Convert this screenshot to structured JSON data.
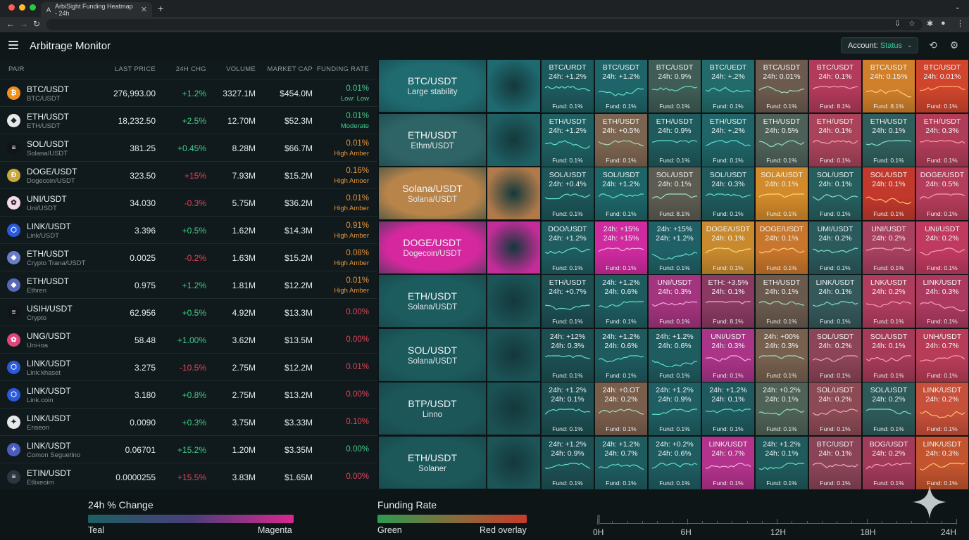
{
  "browser": {
    "tab_title": "ArbiSight Funding Heatmap - 24h",
    "tab_close": "✕",
    "new_tab": "+"
  },
  "app": {
    "title": "Arbitrage Monitor",
    "account_label": "Account:",
    "account_status": "Status"
  },
  "table": {
    "headers": [
      "PAIR",
      "LAST PRICE",
      "24H CHG",
      "VOLUME",
      "MARKET CAP",
      "FUNDING RATE"
    ],
    "rows": [
      {
        "pair": "BTC/USDT",
        "sub": "BTC/USDT",
        "icon": "₿",
        "icon_color": "#f0911a",
        "price": "276,993.00",
        "chg": "+1.2%",
        "chg_dir": "up",
        "volume": "3327.1M",
        "mcap": "$454.0M",
        "rate": "0.01%",
        "rate_label": "Low: Low",
        "rate_color": "#43c98a"
      },
      {
        "pair": "ETH/USDT",
        "sub": "ETH/USDT",
        "icon": "◆",
        "icon_color": "#e6e8ea",
        "price": "18,232.50",
        "chg": "+2.5%",
        "chg_dir": "up",
        "volume": "12.70M",
        "mcap": "$52.3M",
        "rate": "0.01%",
        "rate_label": "Moderate",
        "rate_color": "#43c98a"
      },
      {
        "pair": "SOL/USDT",
        "sub": "Solana/USDT",
        "icon": "≡",
        "icon_color": "#111418",
        "price": "381.25",
        "chg": "+0.45%",
        "chg_dir": "up",
        "volume": "8.28M",
        "mcap": "$66.7M",
        "rate": "0.01%",
        "rate_label": "High Amber",
        "rate_color": "#e5923a"
      },
      {
        "pair": "DOGE/USDT",
        "sub": "Dogecoin/USDT",
        "icon": "Ð",
        "icon_color": "#c9a83b",
        "price": "323.50",
        "chg": "+15%",
        "chg_dir": "down",
        "volume": "7.93M",
        "mcap": "$15.2M",
        "rate": "0.16%",
        "rate_label": "High Amoer",
        "rate_color": "#e5923a"
      },
      {
        "pair": "UNI/USDT",
        "sub": "Uni/USDT",
        "icon": "✿",
        "icon_color": "#f3dbe8",
        "price": "34.030",
        "chg": "-0.3%",
        "chg_dir": "down",
        "volume": "5.75M",
        "mcap": "$36.2M",
        "rate": "0.01%",
        "rate_label": "High Amber",
        "rate_color": "#e5923a"
      },
      {
        "pair": "LINK/USDT",
        "sub": "Link/USDT",
        "icon": "⬡",
        "icon_color": "#2a5ada",
        "price": "3.396",
        "chg": "+0.5%",
        "chg_dir": "up",
        "volume": "1.62M",
        "mcap": "$14.3M",
        "rate": "0.91%",
        "rate_label": "High Amber",
        "rate_color": "#e5923a"
      },
      {
        "pair": "ETH/USDT",
        "sub": "Crypto Trana/USDT",
        "icon": "◆",
        "icon_color": "#6a7ec8",
        "price": "0.0025",
        "chg": "-0.2%",
        "chg_dir": "down",
        "volume": "1.63M",
        "mcap": "$15.2M",
        "rate": "0.08%",
        "rate_label": "High Amber",
        "rate_color": "#e5923a"
      },
      {
        "pair": "ETH/USDT",
        "sub": "Ethren",
        "icon": "◆",
        "icon_color": "#5868b8",
        "price": "0.975",
        "chg": "+1.2%",
        "chg_dir": "up",
        "volume": "1.81M",
        "mcap": "$12.2M",
        "rate": "0.01%",
        "rate_label": "High Amber",
        "rate_color": "#e5923a"
      },
      {
        "pair": "USIH/USDT",
        "sub": "Crypto",
        "icon": "≡",
        "icon_color": "#111418",
        "price": "62.956",
        "chg": "+0.5%",
        "chg_dir": "up",
        "volume": "4.92M",
        "mcap": "$13.3M",
        "rate": "0.00%",
        "rate_label": "",
        "rate_color": "#e0445a"
      },
      {
        "pair": "UNG/USDT",
        "sub": "Uni-ioa",
        "icon": "✿",
        "icon_color": "#e0457a",
        "price": "58.48",
        "chg": "+1.00%",
        "chg_dir": "up",
        "volume": "3.62M",
        "mcap": "$13.5M",
        "rate": "0.00%",
        "rate_label": "",
        "rate_color": "#e0445a"
      },
      {
        "pair": "LINK/USDT",
        "sub": "Link:khaset",
        "icon": "⬡",
        "icon_color": "#2a5ada",
        "price": "3.275",
        "chg": "-10.5%",
        "chg_dir": "down",
        "volume": "2.75M",
        "mcap": "$12.2M",
        "rate": "0.01%",
        "rate_label": "",
        "rate_color": "#e0445a"
      },
      {
        "pair": "LINK/USDT",
        "sub": "Link.coin",
        "icon": "⬡",
        "icon_color": "#2a5ada",
        "price": "3.180",
        "chg": "+0.8%",
        "chg_dir": "up",
        "volume": "2.75M",
        "mcap": "$13.2M",
        "rate": "0.00%",
        "rate_label": "",
        "rate_color": "#e0445a"
      },
      {
        "pair": "LINK/USDT",
        "sub": "Enseon",
        "icon": "✦",
        "icon_color": "#e6e8ea",
        "price": "0.0090",
        "chg": "+0.3%",
        "chg_dir": "up",
        "volume": "3.75M",
        "mcap": "$3.33M",
        "rate": "0.10%",
        "rate_label": "",
        "rate_color": "#e0445a"
      },
      {
        "pair": "LINK/USDT",
        "sub": "Comon Seguetino",
        "icon": "✧",
        "icon_color": "#4a5cc0",
        "price": "0.06701",
        "chg": "+15.2%",
        "chg_dir": "up",
        "volume": "1.20M",
        "mcap": "$3.35M",
        "rate": "0.00%",
        "rate_label": "",
        "rate_color": "#43c98a"
      },
      {
        "pair": "ETIN/USDT",
        "sub": "Etlixeoim",
        "icon": "≡",
        "icon_color": "#2e3540",
        "price": "0.0000255",
        "chg": "+15.5%",
        "chg_dir": "down",
        "volume": "3.83M",
        "mcap": "$1.65M",
        "rate": "0.00%",
        "rate_label": "",
        "rate_color": "#e0445a"
      }
    ]
  },
  "heatmap": {
    "rows": [
      {
        "title": "BTC/USDT",
        "sub": "Large stability",
        "bg": "#1f6b70",
        "blank": "#1e6a70",
        "cells": [
          {
            "l1": "BTC/URDT",
            "l2": "24h: +1.2%",
            "fund": "Fund: 0.1%",
            "bg": "#1d5a5e",
            "spark": "#5fe0c8"
          },
          {
            "l1": "BTC/USDT",
            "l2": "24h: +1.2%",
            "fund": "Fund: 0.1%",
            "bg": "#1e6468",
            "spark": "#5fe0c8"
          },
          {
            "l1": "BTC/USDT",
            "l2": "24h: 0.9%",
            "fund": "Fund: 0.1%",
            "bg": "#3f5c55",
            "spark": "#5fe0c8"
          },
          {
            "l1": "BTC/UEDT",
            "l2": "24h: +.2%",
            "fund": "Fund: 0.1%",
            "bg": "#236a6a",
            "spark": "#5fe0c8"
          },
          {
            "l1": "BTC/USDT",
            "l2": "24h: 0.01%",
            "fund": "Fund: 0.1%",
            "bg": "#6d5a4e",
            "spark": "#9fe0c0"
          },
          {
            "l1": "BTC/USDT",
            "l2": "24h: 0.1%",
            "fund": "Fund: 8.1%",
            "bg": "#b23a5a",
            "spark": "#f6a0b8"
          },
          {
            "l1": "BTC/USDT",
            "l2": "24h: 0.15%",
            "fund": "Fund: 8.1%",
            "bg": "#d0802a",
            "spark": "#ffd080"
          },
          {
            "l1": "BTC/USDT",
            "l2": "24h: 0.01%",
            "fund": "Fund: 0.1%",
            "bg": "#d0452c",
            "spark": "#ffb070"
          }
        ]
      },
      {
        "title": "ETH/USDT",
        "sub": "Ethm/USDT",
        "bg": "#2f6466",
        "blank": "#1f6064",
        "cells": [
          {
            "l1": "ETH/USDT",
            "l2": "24h: +1.2%",
            "fund": "Fund: 0.1%",
            "bg": "#1e5f62",
            "spark": "#5fe0c8"
          },
          {
            "l1": "ETH/USDT",
            "l2": "24h: +0.5%",
            "fund": "Fund: 0.1%",
            "bg": "#7c6550",
            "spark": "#9fe0c0"
          },
          {
            "l1": "ETH/USDT",
            "l2": "24h: 0.9%",
            "fund": "Fund: 0.1%",
            "bg": "#1f5a5c",
            "spark": "#5fe0c8"
          },
          {
            "l1": "ETH/USDT",
            "l2": "24h: +.2%",
            "fund": "Fund: 0.1%",
            "bg": "#1f6467",
            "spark": "#5fe0c8"
          },
          {
            "l1": "ETH/USDT",
            "l2": "24h: 0.5%",
            "fund": "Fund: 0.1%",
            "bg": "#4e6158",
            "spark": "#8fe0c0"
          },
          {
            "l1": "ETH/USDT",
            "l2": "24h: 0.1%",
            "fund": "Fund: 0.1%",
            "bg": "#a8435a",
            "spark": "#f4a8b8"
          },
          {
            "l1": "ETH/USDT",
            "l2": "24h: 0.1%",
            "fund": "Fund: 0.1%",
            "bg": "#2f5e5c",
            "spark": "#7fe0c8"
          },
          {
            "l1": "ETH/USDT",
            "l2": "24h: 0.3%",
            "fund": "Fund: 0.1%",
            "bg": "#b03c58",
            "spark": "#f6a0b8"
          }
        ]
      },
      {
        "title": "Solana/USDT",
        "sub": "Solana/USDT",
        "bg": "#b8844a",
        "blank": "#b07a4a",
        "cells": [
          {
            "l1": "SOL/USDT",
            "l2": "24h: +0.4%",
            "fund": "Fund: 0.1%",
            "bg": "#1d5558",
            "spark": "#5fe0c8"
          },
          {
            "l1": "SOL/USDT",
            "l2": "24h: +1.2%",
            "fund": "Fund: 0.1%",
            "bg": "#1e6568",
            "spark": "#5fe0c8"
          },
          {
            "l1": "SOL/USDT",
            "l2": "24h: 0.1%",
            "fund": "Fund: 8.1%",
            "bg": "#5c5c52",
            "spark": "#9fe0c0"
          },
          {
            "l1": "SOL/USDT",
            "l2": "24h: 0.3%",
            "fund": "Fund: 0.1%",
            "bg": "#1f5a5c",
            "spark": "#5fe0c8"
          },
          {
            "l1": "SOLA/USDT",
            "l2": "24h: 0.1%",
            "fund": "Fund: 0.1%",
            "bg": "#d28a2a",
            "spark": "#ffd57a"
          },
          {
            "l1": "SOL/USDT",
            "l2": "24h: 0.1%",
            "fund": "Fund: 0.1%",
            "bg": "#265e5e",
            "spark": "#7fe0c8"
          },
          {
            "l1": "SOL/USDT",
            "l2": "24h: 0.1%",
            "fund": "Fund: 0.1%",
            "bg": "#c2382c",
            "spark": "#ffc070"
          },
          {
            "l1": "DOGE/USDT",
            "l2": "24h: 0.5%",
            "fund": "Fund: 0.1%",
            "bg": "#b53c5a",
            "spark": "#f6a0b8"
          }
        ]
      },
      {
        "title": "DOGE/USDT",
        "sub": "Dogecoin/USDT",
        "bg": "#d5289e",
        "blank": "#c42c9a",
        "cells": [
          {
            "l1": "DOO/USDT",
            "l2": "24h: +1.2%",
            "fund": "Fund: 0.1%",
            "bg": "#1e5c60",
            "spark": "#5fe0c8"
          },
          {
            "l1": "24h: +15%",
            "l2": "24h: +15%",
            "fund": "Fund: 0.1%",
            "bg": "#cf2aa0",
            "spark": "#f8b0e0"
          },
          {
            "l1": "24h: +15%",
            "l2": "24h: +1.2%",
            "fund": "Fund: 0.1%",
            "bg": "#1f6066",
            "spark": "#5fe0c8"
          },
          {
            "l1": "DOGE/USDT",
            "l2": "24h: 0.1%",
            "fund": "Fund: 0.1%",
            "bg": "#c98a2e",
            "spark": "#ffd57a"
          },
          {
            "l1": "DOGE/USDT",
            "l2": "24h: 0.1%",
            "fund": "Fund: 0.1%",
            "bg": "#c8762c",
            "spark": "#ffd07a"
          },
          {
            "l1": "UMI/USDT",
            "l2": "24h: 0.2%",
            "fund": "Fund: 0.1%",
            "bg": "#2a5a5c",
            "spark": "#7fe0c8"
          },
          {
            "l1": "UNI/USDT",
            "l2": "24h: 0.2%",
            "fund": "Fund: 0.1%",
            "bg": "#a84060",
            "spark": "#f4a8c0"
          },
          {
            "l1": "UNI/USDT",
            "l2": "24h: 0.2%",
            "fund": "Fund: 0.1%",
            "bg": "#c03a60",
            "spark": "#f6a0c0"
          }
        ]
      },
      {
        "title": "ETH/USDT",
        "sub": "Solana/USDT",
        "bg": "#1c5b5e",
        "blank": "#1c5558",
        "cells": [
          {
            "l1": "ETH/USDT",
            "l2": "24h: +0.7%",
            "fund": "Fund: 0.1%",
            "bg": "#1d4e52",
            "spark": "#5fe0c8"
          },
          {
            "l1": "24h: +1.2%",
            "l2": "24h: 0.6%",
            "fund": "Fund: 0.1%",
            "bg": "#1e5c60",
            "spark": "#5fe0c8"
          },
          {
            "l1": "UNI/USDT",
            "l2": "24h: 0.3%",
            "fund": "Fund: 0.1%",
            "bg": "#a3347e",
            "spark": "#f6b0e0"
          },
          {
            "l1": "ETH: +3.5%",
            "l2": "24h: 0.1%",
            "fund": "Fund: 8.1%",
            "bg": "#8a3a62",
            "spark": "#f0a8c8"
          },
          {
            "l1": "ETH/USDT",
            "l2": "24h: 0.1%",
            "fund": "Fund: 0.1%",
            "bg": "#6a5a4e",
            "spark": "#a0e0c0"
          },
          {
            "l1": "LINK/USDT",
            "l2": "24h: 0.1%",
            "fund": "Fund: 0.1%",
            "bg": "#35585a",
            "spark": "#7fe0c8"
          },
          {
            "l1": "LNK/USDT",
            "l2": "24h: 0.2%",
            "fund": "Fund: 0.1%",
            "bg": "#b03c5e",
            "spark": "#f6a0c0"
          },
          {
            "l1": "LINK/USDT",
            "l2": "24h: 0.3%",
            "fund": "Fund: 0.1%",
            "bg": "#ac3a60",
            "spark": "#f6a0c0"
          }
        ]
      },
      {
        "title": "SOL/USDT",
        "sub": "Solana/USDT",
        "bg": "#1c5a5c",
        "blank": "#1c5356",
        "cells": [
          {
            "l1": "24h: +12%",
            "l2": "24h: 0.3%",
            "fund": "Fund: 0.1%",
            "bg": "#1d4f52",
            "spark": "#5fe0c8"
          },
          {
            "l1": "24h: +1.2%",
            "l2": "24h: 0.6%",
            "fund": "Fund: 0.1%",
            "bg": "#1e5a5e",
            "spark": "#5fe0c8"
          },
          {
            "l1": "24h: +1.2%",
            "l2": "24h: 0.6%",
            "fund": "Fund: 0.1%",
            "bg": "#1f5c60",
            "spark": "#5fe0c8"
          },
          {
            "l1": "UNI/USDT",
            "l2": "24h: 0.3%",
            "fund": "Fund: 0.1%",
            "bg": "#a93488",
            "spark": "#f6b0e0"
          },
          {
            "l1": "24h: +00%",
            "l2": "24h: 0.3%",
            "fund": "Fund: 0.1%",
            "bg": "#77604e",
            "spark": "#a0e0c0"
          },
          {
            "l1": "SOL/USDT",
            "l2": "24h: 0.2%",
            "fund": "Fund: 0.1%",
            "bg": "#8c4458",
            "spark": "#f0a8c0"
          },
          {
            "l1": "SOL/USDT",
            "l2": "24h: 0.1%",
            "fund": "Fund: 0.1%",
            "bg": "#a63a58",
            "spark": "#f6a0c0"
          },
          {
            "l1": "UNH/USDT",
            "l2": "24h: 0.7%",
            "fund": "Fund: 0.1%",
            "bg": "#b83c58",
            "spark": "#f6a0b8"
          }
        ]
      },
      {
        "title": "BTP/USDT",
        "sub": "Linno",
        "bg": "#1c5659",
        "blank": "#1c5154",
        "cells": [
          {
            "l1": "24h: +1.2%",
            "l2": "24h: 0.1%",
            "fund": "Fund: 0.1%",
            "bg": "#1d4f52",
            "spark": "#5fe0c8"
          },
          {
            "l1": "24h: +0.OT",
            "l2": "24h: 0.2%",
            "fund": "Fund: 0.1%",
            "bg": "#7a5e4c",
            "spark": "#a0e0c0"
          },
          {
            "l1": "24h: +1.2%",
            "l2": "24h: 0.9%",
            "fund": "Fund: 0.1%",
            "bg": "#1f5e62",
            "spark": "#5fe0c8"
          },
          {
            "l1": "24h: +1.2%",
            "l2": "24h: 0.1%",
            "fund": "Fund: 0.1%",
            "bg": "#1e5a5e",
            "spark": "#5fe0c8"
          },
          {
            "l1": "24h: +0.2%",
            "l2": "24h: 0.1%",
            "fund": "Fund: 0.1%",
            "bg": "#4f6256",
            "spark": "#8fe0c0"
          },
          {
            "l1": "SOL/USDT",
            "l2": "24h: 0.2%",
            "fund": "Fund: 0.1%",
            "bg": "#8c4a55",
            "spark": "#f0a8c0"
          },
          {
            "l1": "SOL/USDT",
            "l2": "24h: 0.2%",
            "fund": "Fund: 0.1%",
            "bg": "#2e5a5a",
            "spark": "#7fe0c8"
          },
          {
            "l1": "LINK/USDT",
            "l2": "24h: 0.2%",
            "fund": "Fund: 0.1%",
            "bg": "#c7503a",
            "spark": "#ffc070"
          }
        ]
      },
      {
        "title": "ETH/USDT",
        "sub": "Solaner",
        "bg": "#1c585a",
        "blank": "#1c5457",
        "cells": [
          {
            "l1": "24h: +1.2%",
            "l2": "24h: 0.9%",
            "fund": "Fund: 0.1%",
            "bg": "#1d5054",
            "spark": "#5fe0c8"
          },
          {
            "l1": "24h: +1.2%",
            "l2": "24h: 0.7%",
            "fund": "Fund: 0.1%",
            "bg": "#1e5c60",
            "spark": "#5fe0c8"
          },
          {
            "l1": "24h: +0.2%",
            "l2": "24h: 0.6%",
            "fund": "Fund: 0.1%",
            "bg": "#1f5c60",
            "spark": "#5fe0c8"
          },
          {
            "l1": "LINK/USDT",
            "l2": "24h: 0.7%",
            "fund": "Fund: 0.1%",
            "bg": "#b3328c",
            "spark": "#f6b0e0"
          },
          {
            "l1": "24h: +1.2%",
            "l2": "24h: 0.1%",
            "fund": "Fund: 0.1%",
            "bg": "#1f5a5c",
            "spark": "#5fe0c8"
          },
          {
            "l1": "BTC/USDT",
            "l2": "24h: 0.1%",
            "fund": "Fund: 0.1%",
            "bg": "#8a4458",
            "spark": "#f0a8c0"
          },
          {
            "l1": "BOG/USDT",
            "l2": "24h: 0.2%",
            "fund": "Fund: 0.1%",
            "bg": "#a23a5a",
            "spark": "#f6a0c0"
          },
          {
            "l1": "LINK/USDT",
            "l2": "24h: 0.3%",
            "fund": "Fund: 0.1%",
            "bg": "#c3542e",
            "spark": "#ffc070"
          }
        ]
      }
    ]
  },
  "legend": {
    "change_title": "24h % Change",
    "change_low": "Teal",
    "change_high": "Magenta",
    "change_from": "#1e5f62",
    "change_to": "#d8288f",
    "funding_title": "Funding Rate",
    "funding_low": "Green",
    "funding_high": "Red overlay",
    "funding_from": "#2e9a52",
    "funding_to": "#c73a2c",
    "timeline": [
      "0H",
      "6H",
      "12H",
      "18H",
      "24H"
    ]
  },
  "colors": {
    "up": "#43c98a",
    "down": "#e0445a"
  }
}
